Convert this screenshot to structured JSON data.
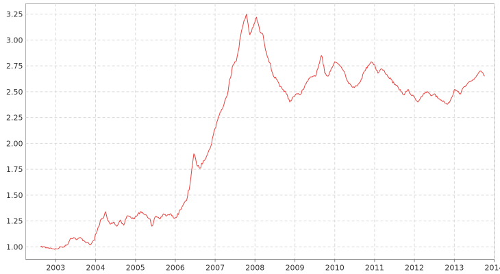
{
  "chart_data": {
    "type": "line",
    "title": "",
    "xlabel": "",
    "ylabel": "",
    "x_ticks": [
      "2003",
      "2004",
      "2005",
      "2006",
      "2007",
      "2008",
      "2009",
      "2010",
      "2011",
      "2012",
      "2013",
      "2014"
    ],
    "y_ticks": [
      "1.00",
      "1.25",
      "1.50",
      "1.75",
      "2.00",
      "2.25",
      "2.50",
      "2.75",
      "3.00",
      "3.25"
    ],
    "xlim": [
      "2002-04-01",
      "2014-01-01"
    ],
    "ylim": [
      0.88,
      3.35
    ],
    "grid": true,
    "legend": "none",
    "series": [
      {
        "color": "#e8423f",
        "points": [
          [
            "2002-08-15",
            1.0
          ],
          [
            "2002-09-15",
            1.0
          ],
          [
            "2002-10-15",
            0.99
          ],
          [
            "2002-11-15",
            0.99
          ],
          [
            "2002-12-15",
            0.98
          ],
          [
            "2003-01-15",
            0.98
          ],
          [
            "2003-02-15",
            1.0
          ],
          [
            "2003-03-15",
            1.0
          ],
          [
            "2003-04-15",
            1.02
          ],
          [
            "2003-05-15",
            1.08
          ],
          [
            "2003-06-15",
            1.09
          ],
          [
            "2003-07-15",
            1.07
          ],
          [
            "2003-08-15",
            1.09
          ],
          [
            "2003-09-15",
            1.06
          ],
          [
            "2003-10-15",
            1.04
          ],
          [
            "2003-11-15",
            1.02
          ],
          [
            "2003-12-15",
            1.06
          ],
          [
            "2004-01-15",
            1.15
          ],
          [
            "2004-02-15",
            1.26
          ],
          [
            "2004-03-15",
            1.28
          ],
          [
            "2004-04-01",
            1.34
          ],
          [
            "2004-04-20",
            1.26
          ],
          [
            "2004-05-15",
            1.22
          ],
          [
            "2004-06-15",
            1.24
          ],
          [
            "2004-07-15",
            1.2
          ],
          [
            "2004-08-15",
            1.26
          ],
          [
            "2004-09-15",
            1.21
          ],
          [
            "2004-10-15",
            1.3
          ],
          [
            "2004-11-15",
            1.29
          ],
          [
            "2004-12-15",
            1.27
          ],
          [
            "2005-01-15",
            1.3
          ],
          [
            "2005-02-15",
            1.34
          ],
          [
            "2005-03-15",
            1.32
          ],
          [
            "2005-04-15",
            1.3
          ],
          [
            "2005-05-15",
            1.27
          ],
          [
            "2005-06-01",
            1.2
          ],
          [
            "2005-07-01",
            1.29
          ],
          [
            "2005-08-15",
            1.27
          ],
          [
            "2005-09-15",
            1.32
          ],
          [
            "2005-10-15",
            1.3
          ],
          [
            "2005-11-15",
            1.32
          ],
          [
            "2005-12-15",
            1.28
          ],
          [
            "2006-01-15",
            1.29
          ],
          [
            "2006-02-15",
            1.36
          ],
          [
            "2006-03-15",
            1.41
          ],
          [
            "2006-04-15",
            1.45
          ],
          [
            "2006-05-15",
            1.6
          ],
          [
            "2006-06-01",
            1.75
          ],
          [
            "2006-06-20",
            1.9
          ],
          [
            "2006-07-15",
            1.8
          ],
          [
            "2006-08-15",
            1.76
          ],
          [
            "2006-09-15",
            1.83
          ],
          [
            "2006-10-15",
            1.88
          ],
          [
            "2006-11-15",
            1.95
          ],
          [
            "2006-12-15",
            2.08
          ],
          [
            "2007-01-15",
            2.2
          ],
          [
            "2007-02-15",
            2.3
          ],
          [
            "2007-03-15",
            2.35
          ],
          [
            "2007-04-15",
            2.45
          ],
          [
            "2007-05-15",
            2.62
          ],
          [
            "2007-06-15",
            2.76
          ],
          [
            "2007-07-15",
            2.8
          ],
          [
            "2007-08-15",
            3.0
          ],
          [
            "2007-09-15",
            3.15
          ],
          [
            "2007-10-15",
            3.25
          ],
          [
            "2007-11-15",
            3.05
          ],
          [
            "2007-12-15",
            3.12
          ],
          [
            "2008-01-15",
            3.22
          ],
          [
            "2008-02-15",
            3.08
          ],
          [
            "2008-03-15",
            3.05
          ],
          [
            "2008-04-15",
            2.88
          ],
          [
            "2008-05-15",
            2.78
          ],
          [
            "2008-06-15",
            2.66
          ],
          [
            "2008-07-15",
            2.62
          ],
          [
            "2008-08-15",
            2.55
          ],
          [
            "2008-09-15",
            2.52
          ],
          [
            "2008-10-15",
            2.48
          ],
          [
            "2008-11-15",
            2.4
          ],
          [
            "2008-12-15",
            2.45
          ],
          [
            "2009-01-15",
            2.48
          ],
          [
            "2009-02-15",
            2.47
          ],
          [
            "2009-03-15",
            2.52
          ],
          [
            "2009-04-15",
            2.58
          ],
          [
            "2009-05-15",
            2.63
          ],
          [
            "2009-06-15",
            2.65
          ],
          [
            "2009-07-15",
            2.66
          ],
          [
            "2009-08-15",
            2.78
          ],
          [
            "2009-09-01",
            2.85
          ],
          [
            "2009-10-01",
            2.68
          ],
          [
            "2009-11-01",
            2.65
          ],
          [
            "2009-12-01",
            2.73
          ],
          [
            "2010-01-01",
            2.79
          ],
          [
            "2010-02-01",
            2.77
          ],
          [
            "2010-03-01",
            2.74
          ],
          [
            "2010-04-01",
            2.69
          ],
          [
            "2010-05-01",
            2.6
          ],
          [
            "2010-06-01",
            2.56
          ],
          [
            "2010-07-01",
            2.54
          ],
          [
            "2010-08-01",
            2.57
          ],
          [
            "2010-09-01",
            2.62
          ],
          [
            "2010-10-01",
            2.7
          ],
          [
            "2010-11-01",
            2.75
          ],
          [
            "2010-12-01",
            2.79
          ],
          [
            "2011-01-01",
            2.76
          ],
          [
            "2011-02-01",
            2.68
          ],
          [
            "2011-03-01",
            2.72
          ],
          [
            "2011-04-01",
            2.7
          ],
          [
            "2011-05-01",
            2.65
          ],
          [
            "2011-06-01",
            2.62
          ],
          [
            "2011-07-01",
            2.57
          ],
          [
            "2011-08-01",
            2.55
          ],
          [
            "2011-09-01",
            2.5
          ],
          [
            "2011-10-01",
            2.47
          ],
          [
            "2011-11-01",
            2.52
          ],
          [
            "2011-12-01",
            2.47
          ],
          [
            "2012-01-01",
            2.45
          ],
          [
            "2012-02-01",
            2.4
          ],
          [
            "2012-03-01",
            2.45
          ],
          [
            "2012-04-01",
            2.48
          ],
          [
            "2012-05-01",
            2.5
          ],
          [
            "2012-06-01",
            2.46
          ],
          [
            "2012-07-01",
            2.48
          ],
          [
            "2012-08-01",
            2.44
          ],
          [
            "2012-09-01",
            2.42
          ],
          [
            "2012-10-01",
            2.4
          ],
          [
            "2012-11-01",
            2.38
          ],
          [
            "2012-12-01",
            2.43
          ],
          [
            "2013-01-01",
            2.52
          ],
          [
            "2013-02-01",
            2.5
          ],
          [
            "2013-03-01",
            2.48
          ],
          [
            "2013-04-01",
            2.55
          ],
          [
            "2013-05-01",
            2.58
          ],
          [
            "2013-06-01",
            2.6
          ],
          [
            "2013-07-01",
            2.62
          ],
          [
            "2013-08-01",
            2.66
          ],
          [
            "2013-09-01",
            2.7
          ],
          [
            "2013-09-20",
            2.68
          ],
          [
            "2013-10-05",
            2.65
          ]
        ]
      }
    ]
  }
}
